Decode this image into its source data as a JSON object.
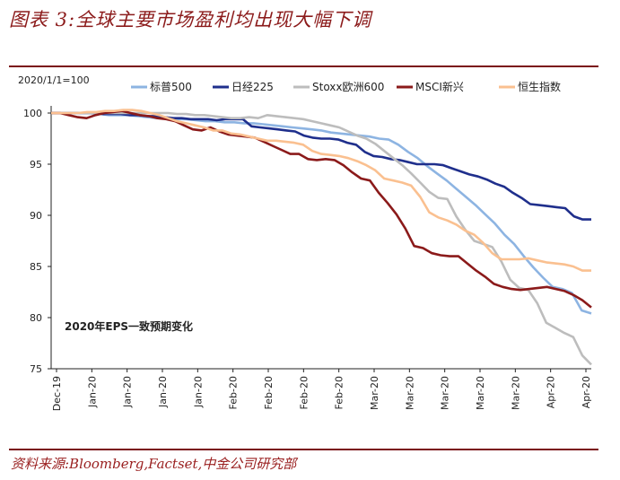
{
  "header": {
    "title": "图表 3:全球主要市场盈利均出现大幅下调"
  },
  "source": {
    "text": "资料来源:Bloomberg,Factset,中金公司研究部"
  },
  "chart_data": {
    "type": "line",
    "base_label": "2020/1/1=100",
    "annotation": "2020年EPS一致预期变化",
    "ylim": [
      75,
      100
    ],
    "yticks": [
      100,
      95,
      90,
      85,
      80,
      75
    ],
    "x_tick_labels": [
      "Dec-19",
      "Jan-20",
      "Jan-20",
      "Jan-20",
      "Jan-20",
      "Feb-20",
      "Feb-20",
      "Feb-20",
      "Feb-20",
      "Mar-20",
      "Mar-20",
      "Mar-20",
      "Mar-20",
      "Mar-20",
      "Apr-20",
      "Apr-20"
    ],
    "series": [
      {
        "name": "标普500",
        "color": "#8db4e2",
        "values": [
          100,
          100,
          100,
          100,
          100,
          99.9,
          99.8,
          99.8,
          99.8,
          99.7,
          99.6,
          99.5,
          99.5,
          99.4,
          99.4,
          99.3,
          99.2,
          99.2,
          99.1,
          99.1,
          99,
          99,
          98.9,
          98.8,
          98.7,
          98.6,
          98.5,
          98.4,
          98.3,
          98.1,
          98,
          97.9,
          97.8,
          97.7,
          97.5,
          97.4,
          96.9,
          96.2,
          95.6,
          94.8,
          94.1,
          93.4,
          92.6,
          91.8,
          91,
          90.1,
          89.2,
          88.1,
          87.2,
          86,
          84.9,
          83.9,
          83,
          82.8,
          82.4,
          80.7,
          80.4
        ]
      },
      {
        "name": "日经225",
        "color": "#1f2f8c",
        "values": [
          100,
          100,
          100,
          100,
          100,
          100,
          99.9,
          99.9,
          99.9,
          99.8,
          99.8,
          99.7,
          99.7,
          99.6,
          99.5,
          99.5,
          99.4,
          99.4,
          99.4,
          99.3,
          99.4,
          99.4,
          99.4,
          98.7,
          98.6,
          98.5,
          98.4,
          98.3,
          98.2,
          97.8,
          97.6,
          97.5,
          97.5,
          97.4,
          97.1,
          96.9,
          96.2,
          95.8,
          95.7,
          95.5,
          95.4,
          95.2,
          95,
          95,
          95,
          94.9,
          94.6,
          94.3,
          94,
          93.8,
          93.5,
          93.1,
          92.8,
          92.2,
          91.7,
          91.1,
          91,
          90.9,
          90.8,
          90.7,
          89.9,
          89.6,
          89.6
        ]
      },
      {
        "name": "Stoxx欧洲600",
        "color": "#bdbdbd",
        "values": [
          100,
          100,
          100,
          100,
          100,
          100,
          100,
          100,
          100,
          100,
          100,
          100,
          100,
          100,
          99.9,
          99.9,
          99.8,
          99.8,
          99.7,
          99.6,
          99.5,
          99.5,
          99.6,
          99.5,
          99.8,
          99.7,
          99.6,
          99.5,
          99.4,
          99.2,
          99,
          98.8,
          98.6,
          98.2,
          97.8,
          97.5,
          97,
          96.3,
          95.6,
          94.9,
          94.1,
          93.2,
          92.3,
          91.7,
          91.6,
          89.9,
          88.6,
          87.5,
          87.2,
          86.9,
          85.5,
          83.7,
          82.9,
          82.7,
          81.4,
          79.5,
          79,
          78.5,
          78.1,
          76.3,
          75.4
        ]
      },
      {
        "name": "MSCI新兴",
        "color": "#8b1a1a",
        "values": [
          100,
          100,
          99.8,
          99.6,
          99.5,
          99.8,
          100,
          100.1,
          100.2,
          100,
          99.8,
          99.7,
          99.5,
          99.4,
          99.2,
          98.8,
          98.4,
          98.3,
          98.6,
          98.2,
          97.9,
          97.8,
          97.7,
          97.6,
          97.2,
          96.8,
          96.4,
          96,
          96,
          95.5,
          95.4,
          95.5,
          95.4,
          94.9,
          94.2,
          93.6,
          93.4,
          92.2,
          91.2,
          90.1,
          88.7,
          87,
          86.8,
          86.3,
          86.1,
          86,
          86,
          85.3,
          84.6,
          84,
          83.3,
          83,
          82.8,
          82.7,
          82.8,
          82.9,
          83,
          82.8,
          82.6,
          82.2,
          81.7,
          81
        ]
      },
      {
        "name": "恒生指数",
        "color": "#fac090",
        "values": [
          100,
          100,
          100,
          100,
          100.1,
          100.1,
          100.2,
          100.2,
          100.3,
          100.3,
          100.2,
          100,
          99.8,
          99.5,
          99.2,
          99,
          98.8,
          98.6,
          98.3,
          98.3,
          98,
          97.9,
          97.7,
          97.5,
          97.3,
          97.3,
          97.2,
          97.1,
          96.9,
          96.3,
          96,
          95.9,
          95.8,
          95.6,
          95.3,
          94.9,
          94.4,
          93.6,
          93.4,
          93.2,
          92.9,
          91.8,
          90.3,
          89.8,
          89.5,
          89.1,
          88.5,
          88.1,
          87.3,
          86.3,
          85.7,
          85.7,
          85.7,
          85.8,
          85.6,
          85.4,
          85.3,
          85.2,
          85,
          84.6,
          84.6
        ]
      }
    ]
  }
}
